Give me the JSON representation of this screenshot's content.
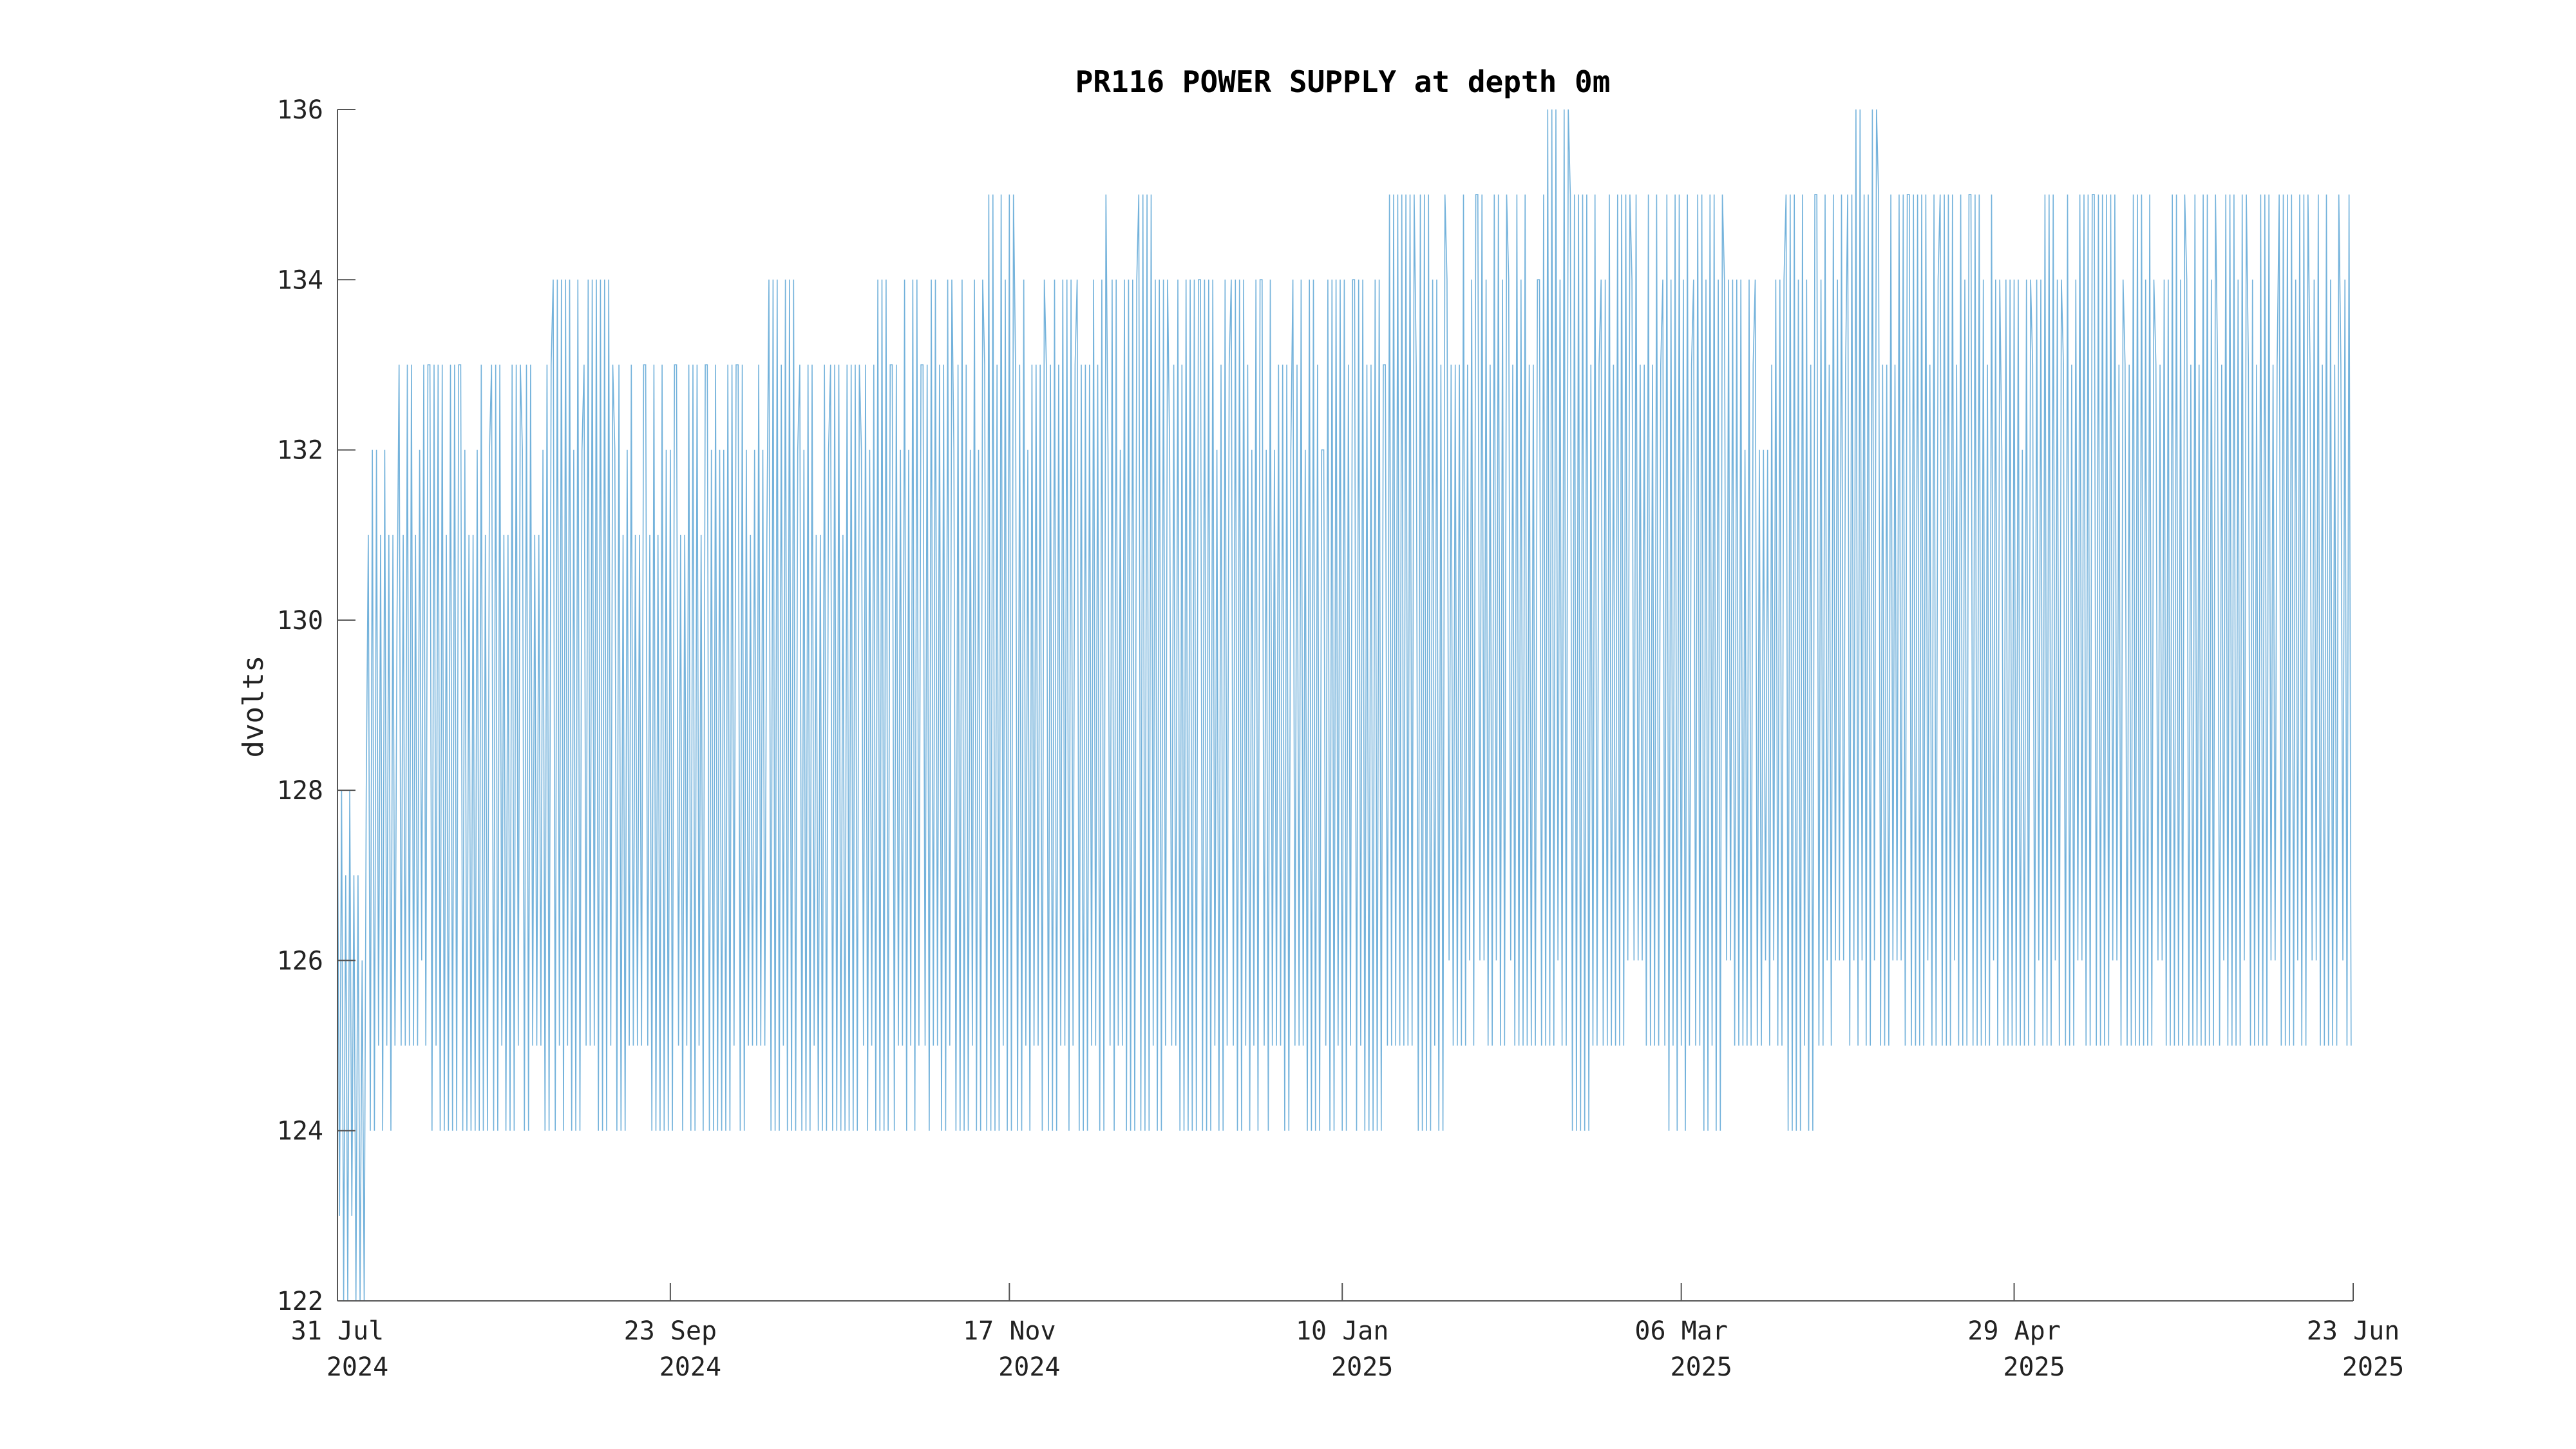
{
  "chart_data": {
    "type": "line",
    "title": "PR116 POWER SUPPLY at depth 0m",
    "xlabel": "",
    "ylabel": "dvolts",
    "xlim": [
      "2024-07-31",
      "2025-06-23"
    ],
    "ylim": [
      122,
      136
    ],
    "grid": false,
    "legend": "none",
    "x_ticks": [
      {
        "date": "2024-07-31",
        "line1": "31 Jul",
        "line2": "2024"
      },
      {
        "date": "2024-09-23",
        "line1": "23 Sep",
        "line2": "2024"
      },
      {
        "date": "2024-11-17",
        "line1": "17 Nov",
        "line2": "2024"
      },
      {
        "date": "2025-01-10",
        "line1": "10 Jan",
        "line2": "2025"
      },
      {
        "date": "2025-03-06",
        "line1": "06 Mar",
        "line2": "2025"
      },
      {
        "date": "2025-04-29",
        "line1": "29 Apr",
        "line2": "2025"
      },
      {
        "date": "2025-06-23",
        "line1": "23 Jun",
        "line2": "2025"
      }
    ],
    "y_ticks": [
      122,
      124,
      126,
      128,
      130,
      132,
      134,
      136
    ],
    "series": [
      {
        "color": "#0072bd",
        "x": [
          "2024-07-31",
          "2024-08-05",
          "2024-08-10",
          "2024-08-15",
          "2024-08-20",
          "2024-08-25",
          "2024-08-30",
          "2024-09-04",
          "2024-09-09",
          "2024-09-14",
          "2024-09-19",
          "2024-09-24",
          "2024-09-29",
          "2024-10-04",
          "2024-10-09",
          "2024-10-14",
          "2024-10-19",
          "2024-10-24",
          "2024-10-29",
          "2024-11-03",
          "2024-11-08",
          "2024-11-13",
          "2024-11-18",
          "2024-11-23",
          "2024-11-28",
          "2024-12-03",
          "2024-12-08",
          "2024-12-13",
          "2024-12-18",
          "2024-12-23",
          "2024-12-28",
          "2025-01-02",
          "2025-01-07",
          "2025-01-12",
          "2025-01-17",
          "2025-01-22",
          "2025-01-27",
          "2025-02-01",
          "2025-02-06",
          "2025-02-11",
          "2025-02-16",
          "2025-02-21",
          "2025-02-26",
          "2025-03-03",
          "2025-03-08",
          "2025-03-13",
          "2025-03-18",
          "2025-03-23",
          "2025-03-28",
          "2025-04-02",
          "2025-04-07",
          "2025-04-12",
          "2025-04-17",
          "2025-04-22",
          "2025-04-27",
          "2025-05-02",
          "2025-05-07",
          "2025-05-12",
          "2025-05-17",
          "2025-05-22",
          "2025-05-27",
          "2025-06-01",
          "2025-06-06",
          "2025-06-11",
          "2025-06-16",
          "2025-06-21"
        ],
        "min": [
          122,
          124,
          125,
          124,
          124,
          124,
          124,
          124,
          124,
          124,
          124,
          124,
          124,
          124,
          124,
          124,
          124,
          124,
          124,
          124,
          124,
          124,
          124,
          124,
          124,
          124,
          124,
          124,
          124,
          124,
          124,
          124,
          124,
          124,
          125,
          124,
          125,
          125,
          125,
          125,
          124,
          125,
          125,
          124,
          124,
          125,
          125,
          124,
          125,
          125,
          125,
          125,
          125,
          125,
          125,
          125,
          125,
          125,
          125,
          125,
          125,
          125,
          125,
          125,
          125,
          125
        ],
        "max": [
          128,
          132,
          133,
          133,
          133,
          133,
          133,
          134,
          134,
          133,
          133,
          133,
          133,
          133,
          134,
          133,
          133,
          134,
          134,
          134,
          134,
          135,
          134,
          134,
          135,
          134,
          135,
          134,
          134,
          134,
          134,
          134,
          134,
          134,
          135,
          135,
          135,
          135,
          135,
          136,
          135,
          135,
          135,
          135,
          135,
          134,
          134,
          135,
          135,
          136,
          135,
          135,
          135,
          135,
          134,
          135,
          135,
          135,
          135,
          135,
          135,
          135,
          135,
          135,
          135,
          135
        ]
      }
    ]
  }
}
